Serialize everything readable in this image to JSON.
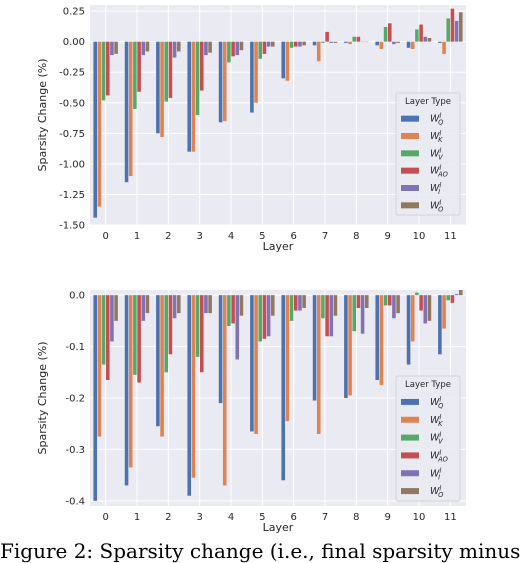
{
  "colors": [
    "#4c72b0",
    "#dd8452",
    "#55a868",
    "#c44e52",
    "#8172b3",
    "#937860"
  ],
  "caption": "Figure 2: Sparsity change (i.e., final sparsity minus",
  "chart_data": [
    {
      "type": "bar",
      "xlabel": "Layer",
      "ylabel": "Sparsity Change (%)",
      "ylim": [
        -1.5,
        0.3
      ],
      "yticks": [
        "0.25",
        "0.00",
        "-0.25",
        "-0.50",
        "-0.75",
        "-1.00",
        "-1.25",
        "-1.50"
      ],
      "ytick_values": [
        0.25,
        0.0,
        -0.25,
        -0.5,
        -0.75,
        -1.0,
        -1.25,
        -1.5
      ],
      "categories": [
        "0",
        "1",
        "2",
        "3",
        "4",
        "5",
        "6",
        "7",
        "8",
        "9",
        "10",
        "11"
      ],
      "grid": true,
      "legend": {
        "title": "Layer Type",
        "position": "lower right"
      },
      "series": [
        {
          "name": "W^l_Q",
          "values": [
            -1.44,
            -1.15,
            -0.75,
            -0.9,
            -0.66,
            -0.58,
            -0.3,
            -0.03,
            -0.01,
            -0.03,
            -0.05,
            -0.01
          ]
        },
        {
          "name": "W^l_K",
          "values": [
            -1.35,
            -1.1,
            -0.78,
            -0.9,
            -0.65,
            -0.5,
            -0.32,
            -0.16,
            -0.02,
            -0.06,
            -0.06,
            -0.1
          ]
        },
        {
          "name": "W^l_V",
          "values": [
            -0.48,
            -0.55,
            -0.49,
            -0.6,
            -0.17,
            -0.14,
            -0.05,
            -0.01,
            0.04,
            0.12,
            0.1,
            0.19
          ]
        },
        {
          "name": "W^l_AO",
          "values": [
            -0.44,
            -0.41,
            -0.46,
            -0.4,
            -0.12,
            -0.1,
            -0.04,
            0.08,
            0.04,
            0.15,
            0.14,
            0.27
          ]
        },
        {
          "name": "W^l_I",
          "values": [
            -0.11,
            -0.11,
            -0.13,
            -0.11,
            -0.11,
            -0.04,
            -0.04,
            -0.01,
            0.0,
            -0.02,
            0.04,
            0.17
          ]
        },
        {
          "name": "W^l_O",
          "values": [
            -0.1,
            -0.08,
            -0.08,
            -0.09,
            -0.07,
            -0.04,
            -0.03,
            -0.01,
            0.0,
            -0.01,
            0.03,
            0.24
          ]
        }
      ]
    },
    {
      "type": "bar",
      "xlabel": "Layer",
      "ylabel": "Sparsity Change (%)",
      "ylim": [
        -0.41,
        0.01
      ],
      "yticks": [
        "0.0",
        "-0.1",
        "-0.2",
        "-0.3",
        "-0.4"
      ],
      "ytick_values": [
        0.0,
        -0.1,
        -0.2,
        -0.3,
        -0.4
      ],
      "categories": [
        "0",
        "1",
        "2",
        "3",
        "4",
        "5",
        "6",
        "7",
        "8",
        "9",
        "10",
        "11"
      ],
      "grid": true,
      "legend": {
        "title": "Layer Type",
        "position": "lower right"
      },
      "series": [
        {
          "name": "W^l_Q",
          "values": [
            -0.4,
            -0.37,
            -0.255,
            -0.39,
            -0.21,
            -0.265,
            -0.36,
            -0.205,
            -0.2,
            -0.165,
            -0.135,
            -0.115
          ]
        },
        {
          "name": "W^l_K",
          "values": [
            -0.275,
            -0.335,
            -0.275,
            -0.355,
            -0.37,
            -0.27,
            -0.245,
            -0.27,
            -0.195,
            -0.175,
            -0.09,
            -0.065
          ]
        },
        {
          "name": "W^l_V",
          "values": [
            -0.135,
            -0.155,
            -0.15,
            -0.12,
            -0.06,
            -0.09,
            -0.05,
            -0.045,
            -0.07,
            -0.02,
            0.005,
            -0.01
          ]
        },
        {
          "name": "W^l_AO",
          "values": [
            -0.165,
            -0.17,
            -0.115,
            -0.15,
            -0.055,
            -0.085,
            -0.03,
            -0.08,
            -0.025,
            -0.02,
            -0.03,
            -0.015
          ]
        },
        {
          "name": "W^l_I",
          "values": [
            -0.09,
            -0.05,
            -0.045,
            -0.035,
            -0.125,
            -0.08,
            -0.03,
            -0.08,
            -0.075,
            -0.045,
            -0.055,
            0.002
          ]
        },
        {
          "name": "W^l_O",
          "values": [
            -0.05,
            -0.035,
            -0.035,
            -0.035,
            -0.04,
            -0.04,
            -0.025,
            -0.04,
            -0.025,
            -0.035,
            -0.05,
            0.01
          ]
        }
      ]
    }
  ]
}
